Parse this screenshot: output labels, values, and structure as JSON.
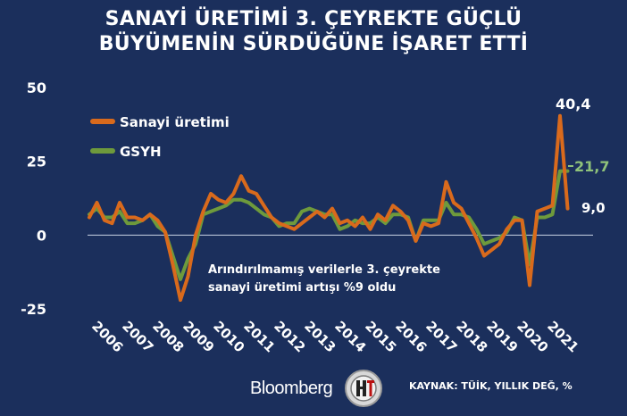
{
  "title": {
    "line1": "SANAYİ ÜRETİMİ 3. ÇEYREKTE GÜÇLÜ",
    "line2": "BÜYÜMENİN SÜRDÜĞÜNE İŞARET ETTİ"
  },
  "annotation": {
    "line1": "Arındırılmamış verilerle 3. çeyrekte",
    "line2": "sanayi üretimi artışı %9 oldu"
  },
  "footer": {
    "brand": "Bloomberg",
    "source": "KAYNAK: TÜİK, YILLIK DEĞ, %"
  },
  "colors": {
    "background": "#1b2f5c",
    "sanayi": "#d96a1c",
    "gsyh": "#6e9a3c",
    "gsyh_label": "#8fc27a"
  },
  "chart_data": {
    "type": "line",
    "ylim": [
      -25,
      50
    ],
    "yticks": [
      50,
      25,
      0,
      -25
    ],
    "xticks": [
      "2006",
      "2007",
      "2008",
      "2009",
      "2010",
      "2011",
      "2012",
      "2013",
      "2014",
      "2015",
      "2016",
      "2017",
      "2018",
      "2019",
      "2020",
      "2021"
    ],
    "x_start": 2006.0,
    "period": "quarterly",
    "legend_position": "top-left",
    "series": [
      {
        "name": "Sanayi üretimi",
        "color": "#d96a1c",
        "end_label": "9,0",
        "peak_label": "40,4",
        "values": [
          6,
          11,
          5,
          4,
          11,
          6,
          6,
          5,
          7,
          5,
          1,
          -10,
          -22,
          -14,
          0,
          8,
          14,
          12,
          11,
          14,
          20,
          15,
          14,
          10,
          6,
          4,
          3,
          2,
          4,
          6,
          8,
          6,
          9,
          4,
          5,
          3,
          6,
          2,
          7,
          5,
          10,
          8,
          5,
          -2,
          4,
          3,
          4,
          18,
          11,
          9,
          4,
          -1,
          -7,
          -5,
          -3,
          2,
          5,
          5,
          -17,
          8,
          9,
          10,
          40.4,
          9.0
        ]
      },
      {
        "name": "GSYH",
        "color": "#6e9a3c",
        "end_label": "21,7",
        "values": [
          7,
          9,
          6,
          6,
          8,
          4,
          4,
          5,
          7,
          3,
          1,
          -7,
          -15,
          -8,
          -3,
          7,
          8,
          9,
          10,
          12,
          12,
          11,
          9,
          7,
          6,
          3,
          4,
          4,
          8,
          9,
          8,
          7,
          7,
          2,
          3,
          5,
          4,
          4,
          6,
          4,
          7,
          7,
          6,
          -2,
          5,
          5,
          5,
          11,
          7,
          7,
          6,
          2,
          -3,
          -2,
          -1,
          1,
          6,
          5,
          -10,
          6,
          6,
          7,
          21.7,
          21.7
        ]
      }
    ]
  }
}
